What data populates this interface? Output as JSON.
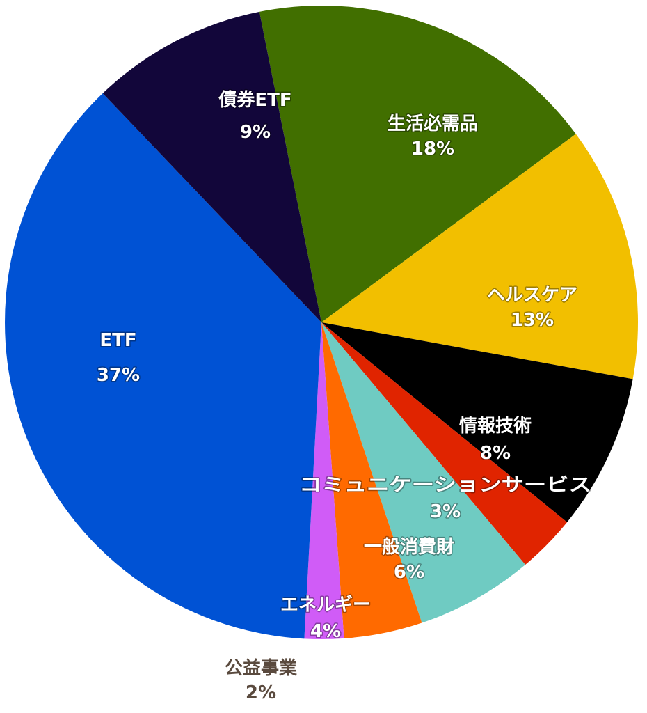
{
  "chart_data": {
    "type": "pie",
    "title": "",
    "colors": {
      "dark_label": "#5a4a3e",
      "light_label": "#ffffff"
    },
    "slices": [
      {
        "label": "生活必需品",
        "value_label": "18%",
        "value": 18,
        "color": "#416f00",
        "label_color": "light"
      },
      {
        "label": "ヘルスケア",
        "value_label": "13%",
        "value": 13,
        "color": "#f2bf00",
        "label_color": "light"
      },
      {
        "label": "情報技術",
        "value_label": "8%",
        "value": 8,
        "color": "#000000",
        "label_color": "light"
      },
      {
        "label": "コミュニケーションサービス",
        "value_label": "3%",
        "value": 3,
        "color": "#e02400",
        "label_color": "light"
      },
      {
        "label": "一般消費財",
        "value_label": "6%",
        "value": 6,
        "color": "#6fcbc2",
        "label_color": "light"
      },
      {
        "label": "エネルギー",
        "value_label": "4%",
        "value": 4,
        "color": "#ff6a00",
        "label_color": "light"
      },
      {
        "label": "公益事業",
        "value_label": "2%",
        "value": 2,
        "color": "#d05cf7",
        "label_color": "dark"
      },
      {
        "label": "ETF",
        "value_label": "37%",
        "value": 37,
        "color": "#0052d4",
        "label_color": "light"
      },
      {
        "label": "債券ETF",
        "value_label": "9%",
        "value": 9,
        "color": "#12063a",
        "label_color": "light"
      }
    ]
  }
}
